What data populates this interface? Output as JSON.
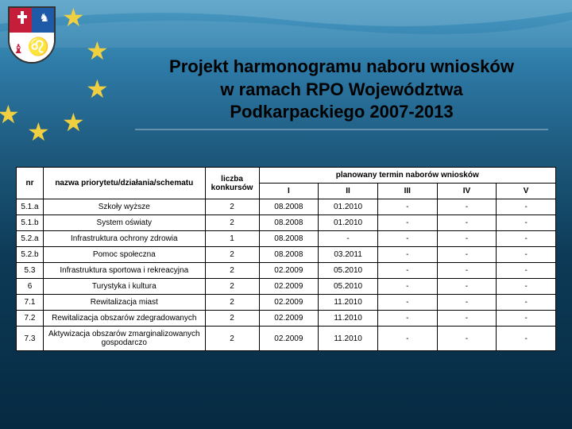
{
  "title": {
    "line1": "Projekt harmonogramu naboru wniosków",
    "line2": "w ramach RPO Województwa",
    "line3": "Podkarpackiego 2007-2013"
  },
  "table": {
    "headers": {
      "nr": "nr",
      "nazwa": "nazwa priorytetu/działania/schematu",
      "liczba": "liczba konkursów",
      "plan": "planowany termin naborów wniosków",
      "roman": [
        "I",
        "II",
        "III",
        "IV",
        "V"
      ]
    },
    "rows": [
      {
        "nr": "5.1.a",
        "nazwa": "Szkoły wyższe",
        "liczba": "2",
        "terms": [
          "08.2008",
          "01.2010",
          "-",
          "-",
          "-"
        ]
      },
      {
        "nr": "5.1.b",
        "nazwa": "System oświaty",
        "liczba": "2",
        "terms": [
          "08.2008",
          "01.2010",
          "-",
          "-",
          "-"
        ]
      },
      {
        "nr": "5.2.a",
        "nazwa": "Infrastruktura ochrony zdrowia",
        "liczba": "1",
        "terms": [
          "08.2008",
          "-",
          "-",
          "-",
          "-"
        ]
      },
      {
        "nr": "5.2.b",
        "nazwa": "Pomoc społeczna",
        "liczba": "2",
        "terms": [
          "08.2008",
          "03.2011",
          "-",
          "-",
          "-"
        ]
      },
      {
        "nr": "5.3",
        "nazwa": "Infrastruktura sportowa i rekreacyjna",
        "liczba": "2",
        "terms": [
          "02.2009",
          "05.2010",
          "-",
          "-",
          "-"
        ]
      },
      {
        "nr": "6",
        "nazwa": "Turystyka i kultura",
        "liczba": "2",
        "terms": [
          "02.2009",
          "05.2010",
          "-",
          "-",
          "-"
        ]
      },
      {
        "nr": "7.1",
        "nazwa": "Rewitalizacja miast",
        "liczba": "2",
        "terms": [
          "02.2009",
          "11.2010",
          "-",
          "-",
          "-"
        ]
      },
      {
        "nr": "7.2",
        "nazwa": "Rewitalizacja obszarów zdegradowanych",
        "liczba": "2",
        "terms": [
          "02.2009",
          "11.2010",
          "-",
          "-",
          "-"
        ]
      },
      {
        "nr": "7.3",
        "nazwa": "Aktywizacja obszarów zmarginalizowanych gospodarczo",
        "liczba": "2",
        "terms": [
          "02.2009",
          "11.2010",
          "-",
          "-",
          "-"
        ]
      }
    ]
  },
  "styling": {
    "table_border_color": "#000000",
    "table_bg": "#ffffff",
    "table_fontsize": 10,
    "title_fontsize": 22,
    "title_color": "#000000",
    "star_color": "#f0d040",
    "bg_gradient": [
      "#4a9bc4",
      "#2e7ba8",
      "#1e5a7e",
      "#0d3a56",
      "#062a42"
    ]
  }
}
